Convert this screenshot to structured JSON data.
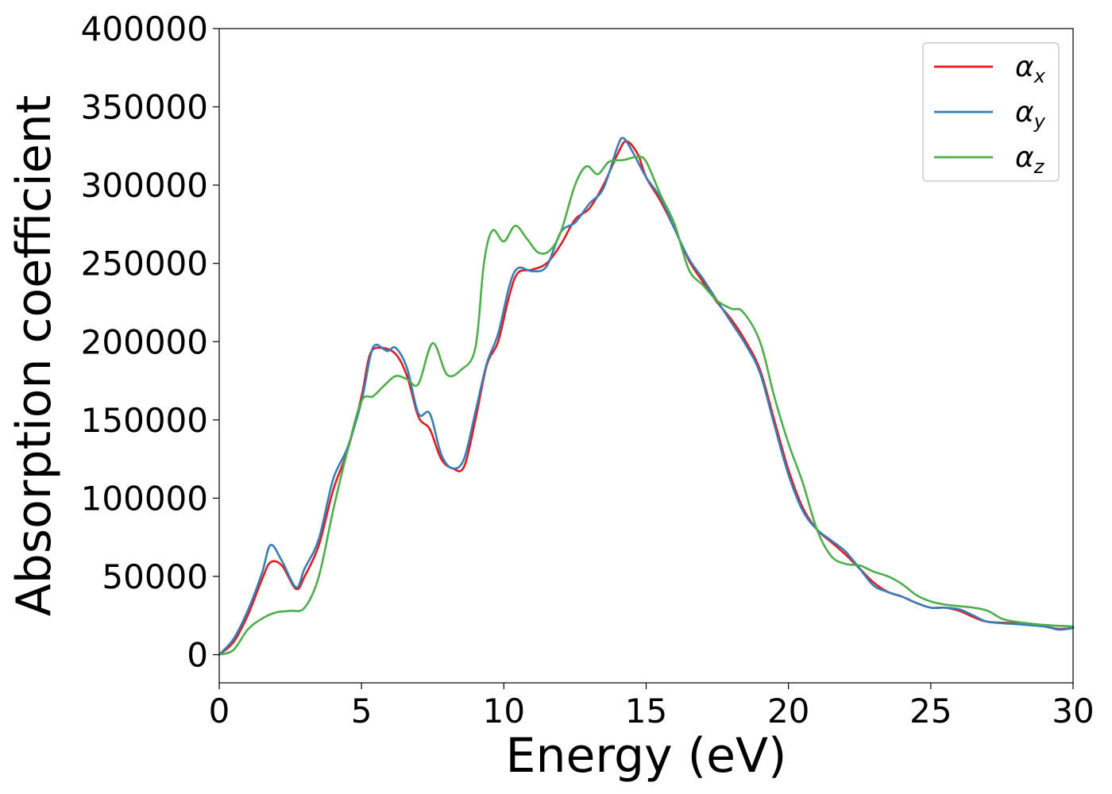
{
  "chart_data": {
    "type": "line",
    "title": "",
    "xlabel": "Energy (eV)",
    "ylabel": "Absorption coefficient",
    "xlim": [
      0,
      30
    ],
    "ylim": [
      -18000,
      400000
    ],
    "x_ticks": [
      "0",
      "5",
      "10",
      "15",
      "20",
      "25",
      "30"
    ],
    "y_ticks": [
      "0",
      "50000",
      "100000",
      "150000",
      "200000",
      "250000",
      "300000",
      "350000",
      "400000"
    ],
    "x_tick_values": [
      0,
      5,
      10,
      15,
      20,
      25,
      30
    ],
    "y_tick_values": [
      0,
      50000,
      100000,
      150000,
      200000,
      250000,
      300000,
      350000,
      400000
    ],
    "grid": false,
    "legend_position": "top-right",
    "series": [
      {
        "name": "α_x",
        "symbol": "α",
        "subscript": "x",
        "color": "#e41a1c",
        "points": [
          [
            0,
            0
          ],
          [
            0.5,
            8000
          ],
          [
            1.0,
            25000
          ],
          [
            1.5,
            48000
          ],
          [
            1.8,
            59000
          ],
          [
            2.2,
            57000
          ],
          [
            2.7,
            42000
          ],
          [
            3.0,
            50000
          ],
          [
            3.5,
            70000
          ],
          [
            4.0,
            105000
          ],
          [
            4.5,
            130000
          ],
          [
            5.0,
            165000
          ],
          [
            5.3,
            192000
          ],
          [
            5.7,
            196000
          ],
          [
            6.2,
            192000
          ],
          [
            6.6,
            178000
          ],
          [
            7.0,
            152000
          ],
          [
            7.4,
            144000
          ],
          [
            7.8,
            125000
          ],
          [
            8.2,
            119000
          ],
          [
            8.6,
            120000
          ],
          [
            9.0,
            150000
          ],
          [
            9.4,
            185000
          ],
          [
            9.8,
            200000
          ],
          [
            10.2,
            230000
          ],
          [
            10.5,
            244000
          ],
          [
            11.0,
            246000
          ],
          [
            11.5,
            250000
          ],
          [
            12.0,
            262000
          ],
          [
            12.5,
            278000
          ],
          [
            13.0,
            285000
          ],
          [
            13.5,
            300000
          ],
          [
            14.0,
            320000
          ],
          [
            14.3,
            328000
          ],
          [
            14.7,
            320000
          ],
          [
            15.0,
            305000
          ],
          [
            15.5,
            290000
          ],
          [
            16.0,
            272000
          ],
          [
            16.5,
            252000
          ],
          [
            17.0,
            238000
          ],
          [
            17.5,
            225000
          ],
          [
            18.0,
            214000
          ],
          [
            18.5,
            200000
          ],
          [
            19.0,
            182000
          ],
          [
            19.5,
            150000
          ],
          [
            20.0,
            118000
          ],
          [
            20.5,
            94000
          ],
          [
            21.0,
            80000
          ],
          [
            21.5,
            72000
          ],
          [
            22.0,
            64000
          ],
          [
            22.5,
            55000
          ],
          [
            23.0,
            46000
          ],
          [
            23.5,
            40000
          ],
          [
            24.0,
            37000
          ],
          [
            24.5,
            33000
          ],
          [
            25.0,
            30000
          ],
          [
            25.5,
            30000
          ],
          [
            26.0,
            28000
          ],
          [
            26.5,
            24000
          ],
          [
            27.0,
            21000
          ],
          [
            28.0,
            20000
          ],
          [
            29.0,
            18000
          ],
          [
            29.5,
            16500
          ],
          [
            30.0,
            17000
          ]
        ]
      },
      {
        "name": "α_y",
        "symbol": "α",
        "subscript": "y",
        "color": "#377eb8",
        "points": [
          [
            0,
            0
          ],
          [
            0.5,
            10000
          ],
          [
            1.0,
            28000
          ],
          [
            1.5,
            52000
          ],
          [
            1.8,
            70000
          ],
          [
            2.2,
            60000
          ],
          [
            2.7,
            43000
          ],
          [
            3.0,
            55000
          ],
          [
            3.5,
            74000
          ],
          [
            4.0,
            112000
          ],
          [
            4.5,
            132000
          ],
          [
            5.0,
            162000
          ],
          [
            5.3,
            190000
          ],
          [
            5.5,
            198000
          ],
          [
            5.9,
            194000
          ],
          [
            6.2,
            196000
          ],
          [
            6.6,
            183000
          ],
          [
            7.0,
            154000
          ],
          [
            7.4,
            154000
          ],
          [
            7.8,
            128000
          ],
          [
            8.2,
            119000
          ],
          [
            8.6,
            125000
          ],
          [
            9.0,
            155000
          ],
          [
            9.4,
            186000
          ],
          [
            9.8,
            205000
          ],
          [
            10.2,
            236000
          ],
          [
            10.5,
            247000
          ],
          [
            11.0,
            245000
          ],
          [
            11.5,
            248000
          ],
          [
            12.0,
            270000
          ],
          [
            12.5,
            276000
          ],
          [
            13.0,
            288000
          ],
          [
            13.5,
            298000
          ],
          [
            14.0,
            325000
          ],
          [
            14.2,
            330000
          ],
          [
            14.5,
            322000
          ],
          [
            15.0,
            305000
          ],
          [
            15.5,
            292000
          ],
          [
            16.0,
            272000
          ],
          [
            16.5,
            253000
          ],
          [
            17.0,
            240000
          ],
          [
            17.5,
            226000
          ],
          [
            18.0,
            212000
          ],
          [
            18.5,
            198000
          ],
          [
            19.0,
            180000
          ],
          [
            19.5,
            147000
          ],
          [
            20.0,
            115000
          ],
          [
            20.5,
            92000
          ],
          [
            21.0,
            80000
          ],
          [
            21.5,
            73000
          ],
          [
            22.0,
            66000
          ],
          [
            22.5,
            55000
          ],
          [
            23.0,
            44000
          ],
          [
            23.5,
            40000
          ],
          [
            24.0,
            37000
          ],
          [
            24.5,
            33000
          ],
          [
            25.0,
            30000
          ],
          [
            25.5,
            30000
          ],
          [
            26.0,
            29000
          ],
          [
            26.5,
            25000
          ],
          [
            27.0,
            21000
          ],
          [
            28.0,
            19500
          ],
          [
            29.0,
            18000
          ],
          [
            29.5,
            16000
          ],
          [
            30.0,
            17000
          ]
        ]
      },
      {
        "name": "α_z",
        "symbol": "α",
        "subscript": "z",
        "color": "#4daf4a",
        "points": [
          [
            0,
            0
          ],
          [
            0.5,
            3000
          ],
          [
            1.0,
            16000
          ],
          [
            1.5,
            23000
          ],
          [
            2.0,
            27000
          ],
          [
            2.5,
            28000
          ],
          [
            3.0,
            30000
          ],
          [
            3.5,
            50000
          ],
          [
            4.0,
            92000
          ],
          [
            4.5,
            130000
          ],
          [
            5.0,
            162000
          ],
          [
            5.4,
            165000
          ],
          [
            5.8,
            172000
          ],
          [
            6.2,
            178000
          ],
          [
            6.6,
            176000
          ],
          [
            7.0,
            173000
          ],
          [
            7.5,
            199000
          ],
          [
            8.0,
            179000
          ],
          [
            8.5,
            182000
          ],
          [
            9.0,
            196000
          ],
          [
            9.3,
            250000
          ],
          [
            9.6,
            271000
          ],
          [
            10.0,
            264000
          ],
          [
            10.4,
            274000
          ],
          [
            10.8,
            266000
          ],
          [
            11.2,
            257000
          ],
          [
            11.6,
            258000
          ],
          [
            12.0,
            270000
          ],
          [
            12.5,
            300000
          ],
          [
            12.9,
            312000
          ],
          [
            13.3,
            307000
          ],
          [
            13.7,
            315000
          ],
          [
            14.2,
            316000
          ],
          [
            14.7,
            318000
          ],
          [
            15.0,
            315000
          ],
          [
            15.5,
            294000
          ],
          [
            16.0,
            275000
          ],
          [
            16.5,
            246000
          ],
          [
            17.0,
            236000
          ],
          [
            17.5,
            226000
          ],
          [
            18.0,
            221000
          ],
          [
            18.4,
            219000
          ],
          [
            19.0,
            200000
          ],
          [
            19.5,
            165000
          ],
          [
            20.0,
            135000
          ],
          [
            20.5,
            110000
          ],
          [
            21.0,
            80000
          ],
          [
            21.5,
            63000
          ],
          [
            22.0,
            58000
          ],
          [
            22.5,
            57000
          ],
          [
            23.0,
            53000
          ],
          [
            23.5,
            50000
          ],
          [
            24.0,
            45000
          ],
          [
            24.5,
            38000
          ],
          [
            25.0,
            34000
          ],
          [
            25.5,
            32000
          ],
          [
            26.0,
            31000
          ],
          [
            26.5,
            30000
          ],
          [
            27.0,
            28000
          ],
          [
            27.5,
            23000
          ],
          [
            28.0,
            21000
          ],
          [
            29.0,
            19000
          ],
          [
            30.0,
            18000
          ]
        ]
      }
    ]
  }
}
